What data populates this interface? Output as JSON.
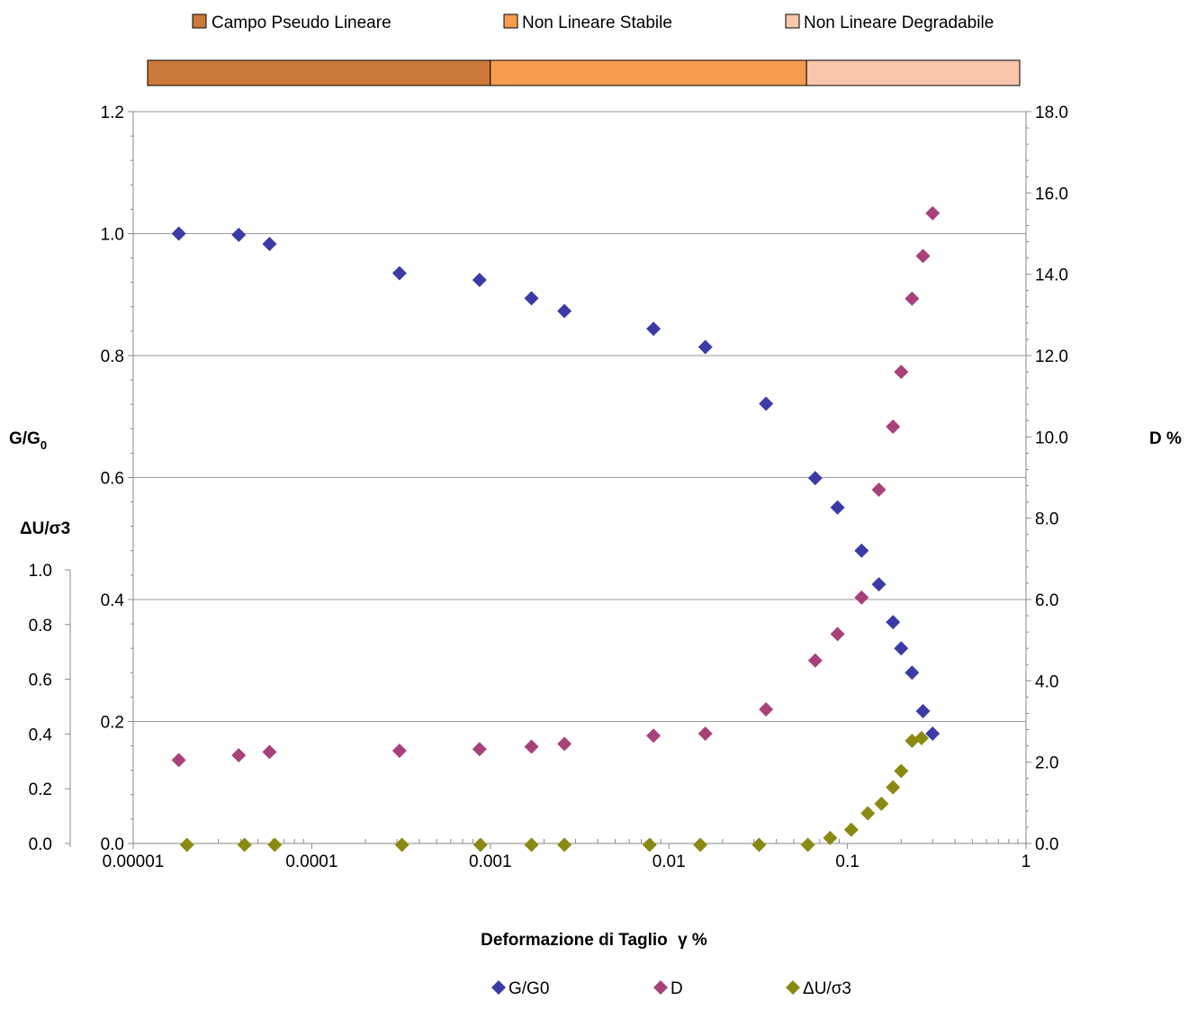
{
  "chart_data": {
    "type": "scatter",
    "x_scale": "log",
    "xlim": [
      1e-05,
      1
    ],
    "xticks": [
      "0.00001",
      "0.0001",
      "0.001",
      "0.01",
      "0.1",
      "1"
    ],
    "xlabel": "Deformazione di  Taglio",
    "xlabel_symbol": "γ %",
    "left_axis_label_main": "G/G",
    "left_axis_label_sub": "0",
    "left_axis2_label": "ΔU/σ3",
    "right_axis_label": "D %",
    "y_left_lim": [
      0,
      1.2
    ],
    "y_left_ticks": [
      "0.0",
      "0.2",
      "0.4",
      "0.6",
      "0.8",
      "1.0",
      "1.2"
    ],
    "y_left2_lim": [
      0,
      1.0
    ],
    "y_left2_ticks": [
      "0.0",
      "0.2",
      "0.4",
      "0.6",
      "0.8",
      "1.0"
    ],
    "y_right_lim": [
      0,
      18
    ],
    "y_right_ticks": [
      "0.0",
      "2.0",
      "4.0",
      "6.0",
      "8.0",
      "10.0",
      "12.0",
      "14.0",
      "16.0",
      "18.0"
    ],
    "grid": "horizontal, left axis",
    "legend_position": "bottom",
    "series": [
      {
        "name": "G/G0",
        "axis": "left",
        "color": "#3b3ba8",
        "x": [
          1.8e-05,
          3.9e-05,
          5.8e-05,
          0.00031,
          0.00087,
          0.0017,
          0.0026,
          0.0082,
          0.016,
          0.035,
          0.066,
          0.088,
          0.12,
          0.15,
          0.18,
          0.2,
          0.23,
          0.265,
          0.3
        ],
        "y": [
          1.0,
          0.998,
          0.983,
          0.935,
          0.924,
          0.894,
          0.873,
          0.844,
          0.814,
          0.721,
          0.599,
          0.551,
          0.48,
          0.425,
          0.363,
          0.32,
          0.28,
          0.217,
          0.18
        ]
      },
      {
        "name": "D",
        "axis": "right",
        "color": "#a8417a",
        "x": [
          1.8e-05,
          3.9e-05,
          5.8e-05,
          0.00031,
          0.00087,
          0.0017,
          0.0026,
          0.0082,
          0.016,
          0.035,
          0.066,
          0.088,
          0.12,
          0.15,
          0.18,
          0.2,
          0.23,
          0.265,
          0.3
        ],
        "y": [
          2.05,
          2.17,
          2.25,
          2.28,
          2.32,
          2.38,
          2.45,
          2.65,
          2.7,
          3.3,
          4.5,
          5.15,
          6.05,
          8.7,
          10.25,
          11.6,
          13.4,
          14.45,
          15.5
        ]
      },
      {
        "name": "ΔU/σ3",
        "axis": "left2",
        "color": "#8a8a12",
        "x": [
          2e-05,
          4.2e-05,
          6.2e-05,
          0.00032,
          0.00088,
          0.0017,
          0.0026,
          0.0078,
          0.015,
          0.032,
          0.06,
          0.08,
          0.105,
          0.13,
          0.155,
          0.18,
          0.2,
          0.23,
          0.26
        ],
        "y": [
          -0.005,
          -0.005,
          -0.005,
          -0.005,
          -0.005,
          -0.005,
          -0.005,
          -0.005,
          -0.005,
          -0.005,
          -0.005,
          0.02,
          0.05,
          0.11,
          0.145,
          0.205,
          0.265,
          0.375,
          0.385
        ]
      }
    ],
    "regions": [
      {
        "label": "Campo Pseudo Lineare",
        "color": "#cc7a3a",
        "x_start": 1e-05,
        "x_end": 0.001
      },
      {
        "label": "Non Lineare Stabile",
        "color": "#f79c4e",
        "x_start": 0.001,
        "x_end": 0.059
      },
      {
        "label": "Non Lineare Degradabile",
        "color": "#f9c5ab",
        "x_start": 0.059,
        "x_end": 1
      }
    ]
  }
}
